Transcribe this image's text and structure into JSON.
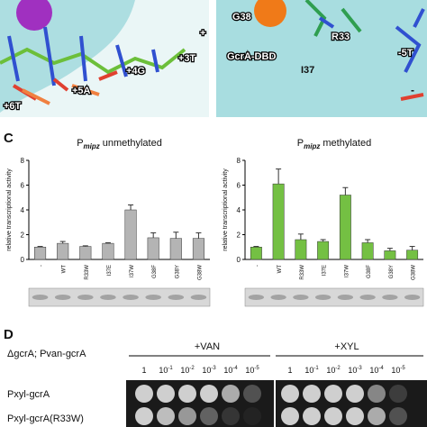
{
  "structure": {
    "labels": [
      "+",
      "+3T",
      "+4G",
      "+5A",
      "+6T",
      "G38",
      "R33",
      "I37",
      "GcrA-DBD",
      "-5T",
      "-"
    ]
  },
  "panel_c": {
    "label": "C",
    "y_label": "relative transcriptional activity"
  },
  "chart_data": [
    {
      "type": "bar",
      "title": {
        "main": "P",
        "sub": "mipz",
        "rest": "unmethylated"
      },
      "categories": [
        "-",
        "WT",
        "R33W",
        "I37E",
        "I37W",
        "G38F",
        "G38Y",
        "G38W"
      ],
      "series": [
        {
          "color": "#b4b4b4",
          "values": [
            1.0,
            1.3,
            1.05,
            1.3,
            4.0,
            1.75,
            1.7,
            1.7
          ],
          "errors": [
            0.05,
            0.15,
            0.05,
            0.05,
            0.4,
            0.4,
            0.5,
            0.45
          ]
        }
      ],
      "ylim": [
        0,
        8
      ],
      "yticks": [
        0,
        2,
        4,
        6,
        8
      ]
    },
    {
      "type": "bar",
      "title": {
        "main": "P",
        "sub": "mipz",
        "rest": "methylated"
      },
      "categories": [
        "-",
        "WT",
        "R33W",
        "I37E",
        "I37W",
        "G38F",
        "G38Y",
        "G38W"
      ],
      "series": [
        {
          "color": "#74c043",
          "values": [
            1.0,
            6.1,
            1.6,
            1.45,
            5.2,
            1.35,
            0.7,
            0.75
          ],
          "errors": [
            0.05,
            1.2,
            0.45,
            0.15,
            0.6,
            0.25,
            0.2,
            0.3
          ]
        }
      ],
      "ylim": [
        0,
        8
      ],
      "yticks": [
        0,
        2,
        4,
        6,
        8
      ]
    }
  ],
  "panel_d": {
    "label": "D",
    "strain": "ΔgcrA; Pvan-gcrA",
    "conditions": [
      "+VAN",
      "+XYL"
    ],
    "dilutions": [
      {
        "base": "1",
        "exp": ""
      },
      {
        "base": "10",
        "exp": "-1"
      },
      {
        "base": "10",
        "exp": "-2"
      },
      {
        "base": "10",
        "exp": "-3"
      },
      {
        "base": "10",
        "exp": "-4"
      },
      {
        "base": "10",
        "exp": "-5"
      }
    ],
    "rows": [
      "Pxyl-gcrA",
      "Pxyl-gcrA(R33W)"
    ]
  }
}
